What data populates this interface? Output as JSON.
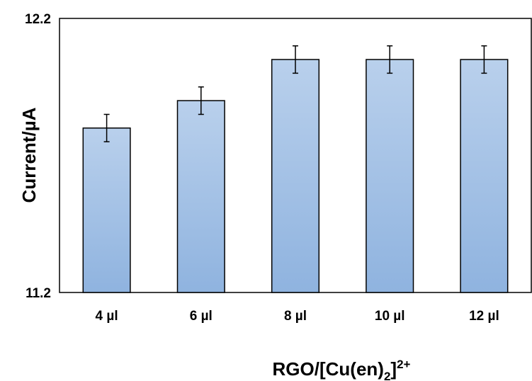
{
  "chart_data": {
    "type": "bar",
    "categories": [
      "4 µl",
      "6 µl",
      "8 µl",
      "10 µl",
      "12 µl"
    ],
    "values": [
      11.8,
      11.9,
      12.05,
      12.05,
      12.05
    ],
    "errors": [
      0.05,
      0.05,
      0.05,
      0.05,
      0.05
    ],
    "ylim": [
      11.2,
      12.2
    ],
    "yticks": [
      "11.2",
      "12.2"
    ],
    "ylabel": "Current/µA",
    "xlabel": {
      "prefix": "RGO/[Cu(en)",
      "sub": "2",
      "mid": "]",
      "sup": "2+"
    },
    "title": "",
    "grid": false,
    "colors": {
      "bar_top": "#b9d0ec",
      "bar_bottom": "#8fb3df",
      "bar_edge": "#000000"
    }
  }
}
